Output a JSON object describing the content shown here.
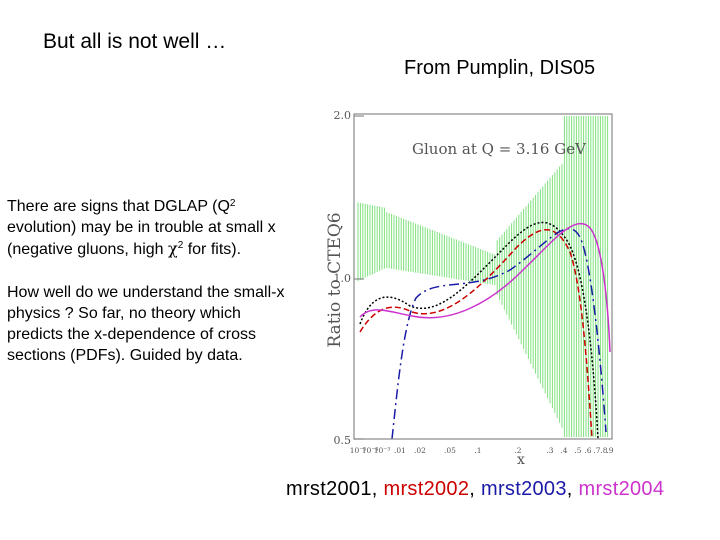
{
  "slide": {
    "title": "But all is not well …",
    "source_note": "From Pumplin, DIS05"
  },
  "paragraphs": {
    "p1_pre": "There are signs that DGLAP (Q",
    "p1_sup1": "2",
    "p1_mid": " evolution) may be in trouble at small x (negative gluons, high ",
    "p1_chi": "χ",
    "p1_sup2": "2",
    "p1_post": " for fits).",
    "p2": "How well do we understand the small-x physics ?  So far, no theory which predicts the x-dependence of cross sections (PDFs).  Guided by data."
  },
  "figure": {
    "panel_title": "Gluon at Q = 3.16 GeV",
    "y_label": "Ratio to CTEQ6",
    "x_label": "x",
    "y_ticks": [
      "2.0",
      "1.0",
      "0.5"
    ],
    "x_ticks": [
      "10⁻⁵",
      "10⁻⁴",
      "10⁻³",
      ".01",
      ".02",
      ".05",
      ".1",
      ".2",
      ".3",
      ".4",
      ".5",
      ".6",
      ".7",
      ".8",
      ".9"
    ]
  },
  "legend": {
    "items": [
      {
        "label": "mrst2001",
        "color": "#000000",
        "sep": ", "
      },
      {
        "label": "mrst2002",
        "color": "#cc0000",
        "sep": ", "
      },
      {
        "label": "mrst2003",
        "color": "#1a1aa8",
        "sep": ", "
      },
      {
        "label": "mrst2004",
        "color": "#cc33cc",
        "sep": ""
      }
    ]
  },
  "colors": {
    "band": "#7fe07f",
    "mrst2001": "#000000",
    "mrst2002": "#cc0000",
    "mrst2003": "#1a1aa8",
    "mrst2004": "#cc33cc"
  }
}
